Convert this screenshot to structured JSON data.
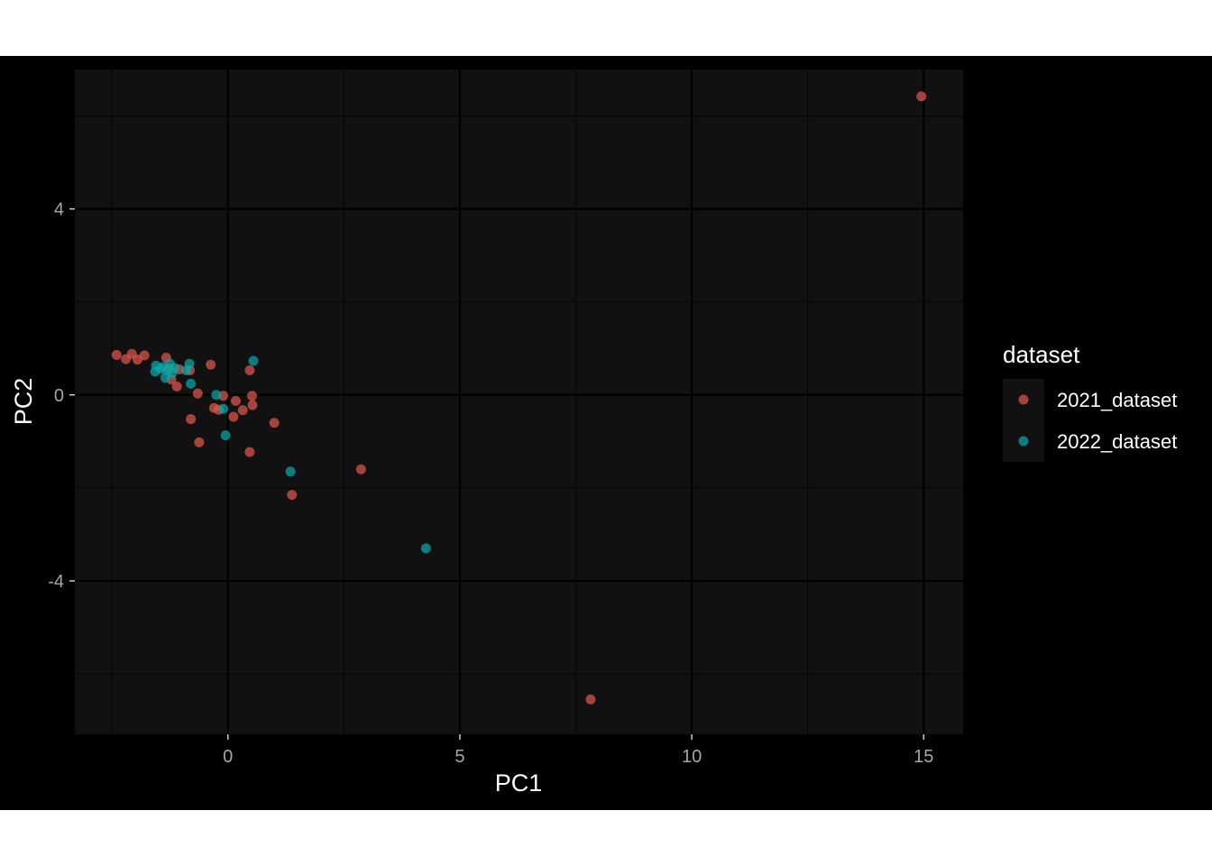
{
  "chart_data": {
    "type": "scatter",
    "title": "",
    "xlabel": "PC1",
    "ylabel": "PC2",
    "xlim": [
      -3.3,
      15.85
    ],
    "ylim": [
      -7.3,
      7.0
    ],
    "x_ticks": [
      0,
      5,
      10,
      15
    ],
    "y_ticks": [
      -4,
      0,
      4
    ],
    "x_tick_labels": [
      "0",
      "5",
      "10",
      "15"
    ],
    "y_tick_labels": [
      "-4",
      "0",
      "4"
    ],
    "grid": true,
    "legend_title": "dataset",
    "legend_position": "right",
    "series": [
      {
        "name": "2021_dataset",
        "color": "#e0564e",
        "points": [
          [
            -2.4,
            0.86
          ],
          [
            -2.2,
            0.77
          ],
          [
            -2.07,
            0.88
          ],
          [
            -1.95,
            0.76
          ],
          [
            -1.8,
            0.85
          ],
          [
            -1.33,
            0.8
          ],
          [
            -1.28,
            0.57
          ],
          [
            -1.22,
            0.33
          ],
          [
            -1.1,
            0.18
          ],
          [
            -1.05,
            0.55
          ],
          [
            -0.82,
            0.53
          ],
          [
            -0.8,
            -0.52
          ],
          [
            -0.65,
            0.03
          ],
          [
            -0.62,
            -1.02
          ],
          [
            -0.37,
            0.65
          ],
          [
            -0.3,
            -0.28
          ],
          [
            -0.2,
            -0.32
          ],
          [
            -0.1,
            -0.02
          ],
          [
            0.12,
            -0.47
          ],
          [
            0.17,
            -0.13
          ],
          [
            0.32,
            -0.33
          ],
          [
            0.47,
            0.53
          ],
          [
            0.47,
            -1.23
          ],
          [
            0.52,
            -0.02
          ],
          [
            0.53,
            -0.22
          ],
          [
            1.0,
            -0.6
          ],
          [
            1.38,
            -2.15
          ],
          [
            2.87,
            -1.6
          ],
          [
            7.82,
            -6.55
          ],
          [
            14.95,
            6.42
          ]
        ]
      },
      {
        "name": "2022_dataset",
        "color": "#0aa8a8",
        "points": [
          [
            -1.55,
            0.63
          ],
          [
            -1.57,
            0.5
          ],
          [
            -1.45,
            0.56
          ],
          [
            -1.4,
            0.6
          ],
          [
            -1.35,
            0.37
          ],
          [
            -1.3,
            0.52
          ],
          [
            -1.25,
            0.67
          ],
          [
            -1.2,
            0.47
          ],
          [
            -1.15,
            0.58
          ],
          [
            -0.9,
            0.53
          ],
          [
            -0.83,
            0.67
          ],
          [
            -0.8,
            0.24
          ],
          [
            -0.25,
            0.0
          ],
          [
            -0.1,
            -0.3
          ],
          [
            -0.05,
            -0.87
          ],
          [
            0.55,
            0.73
          ],
          [
            1.35,
            -1.65
          ],
          [
            4.27,
            -3.3
          ]
        ]
      }
    ]
  },
  "colors": {
    "outer_background": "#000000",
    "panel_background": "#111111",
    "gridline_major": "#000000",
    "gridline_minor": "#060606"
  }
}
